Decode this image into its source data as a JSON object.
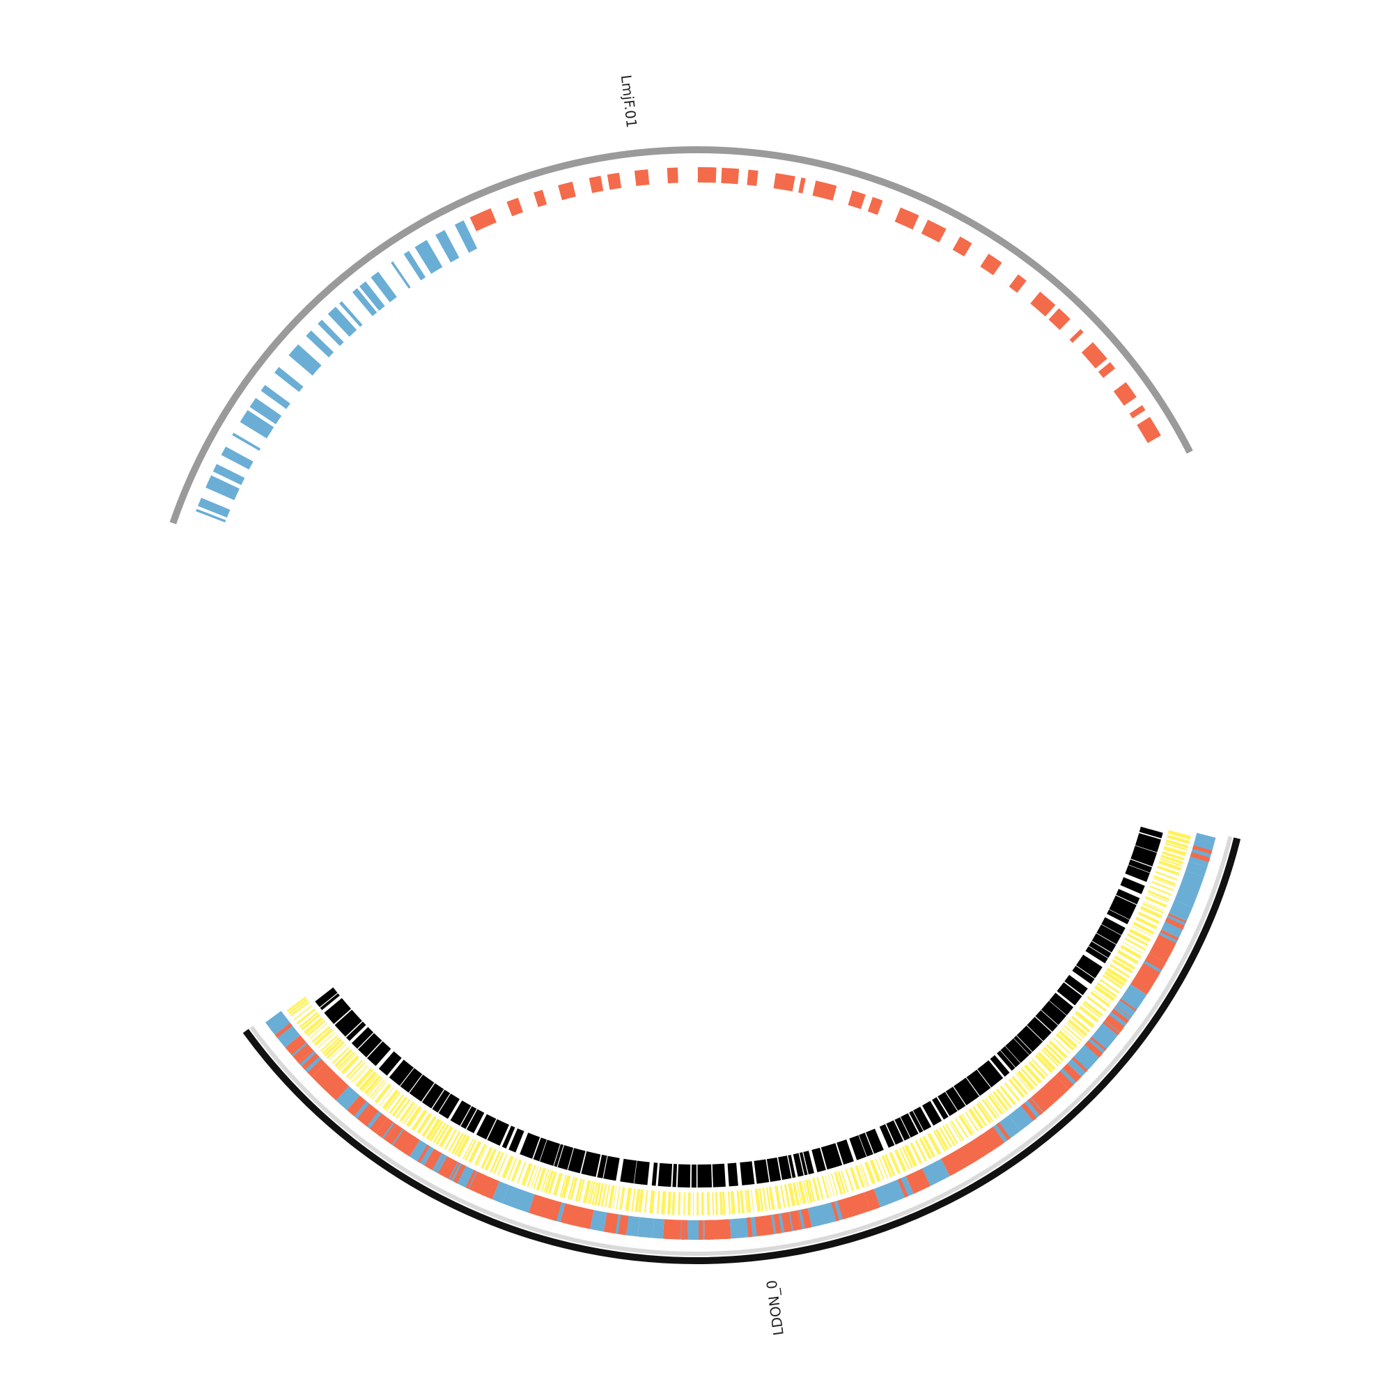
{
  "figure": {
    "type": "circos-genome-comparison",
    "background": "#ffffff"
  },
  "colors": {
    "chrom_top": "#9a9a9a",
    "chrom_bottom": "#111111",
    "plus_strand": "#f46b4b",
    "minus_strand": "#6aaed6",
    "yellow_track": "#fff25e",
    "black_track": "#000000"
  },
  "chromosomes": [
    {
      "id": "top",
      "label": "LmjF.01"
    },
    {
      "id": "bottom",
      "label": "LDON_0"
    }
  ]
}
